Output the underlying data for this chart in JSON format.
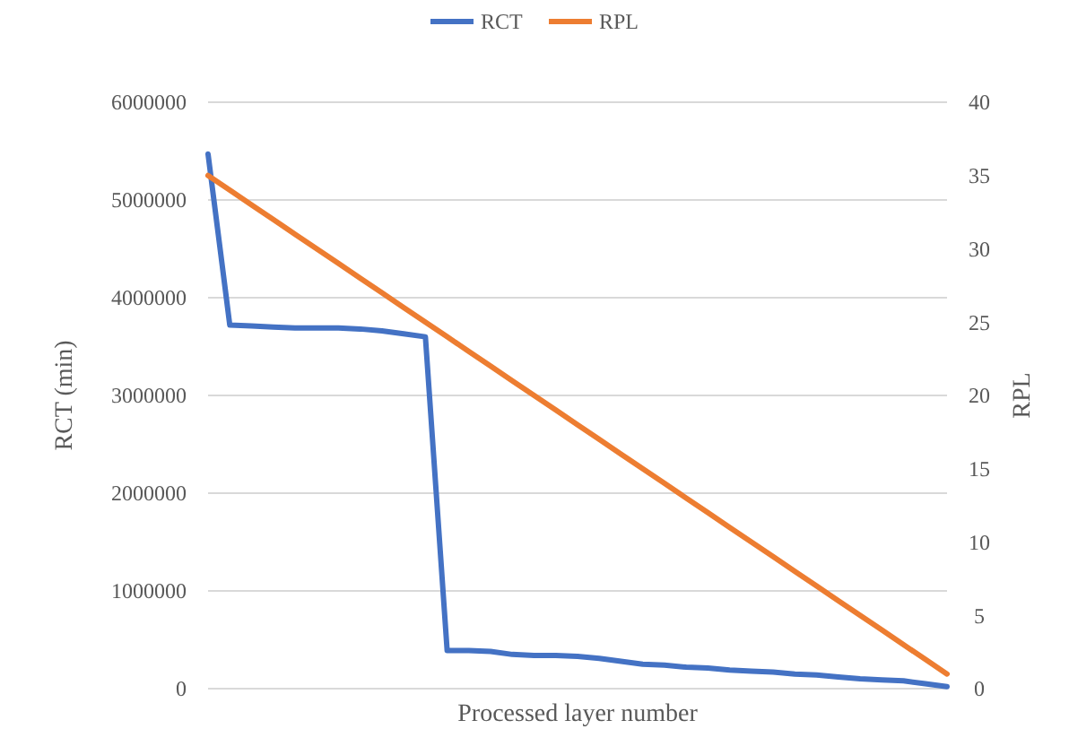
{
  "chart_data": {
    "type": "line",
    "xlabel": "Processed layer number",
    "ylabel": "RCT (min)",
    "y2label": "RPL",
    "categories": [
      null,
      null,
      null,
      null,
      null,
      null,
      null,
      null,
      null,
      null,
      null,
      null,
      null,
      null,
      null,
      null,
      null,
      null,
      null,
      null,
      null,
      null,
      null,
      null,
      null,
      null,
      null,
      null,
      null,
      null,
      null,
      null,
      null,
      null,
      null
    ],
    "series": [
      {
        "name": "RCT",
        "color": "#4472c4",
        "values": [
          5470000,
          3720000,
          3710000,
          3700000,
          3690000,
          3690000,
          3690000,
          3680000,
          3660000,
          3630000,
          3600000,
          390000,
          390000,
          380000,
          350000,
          340000,
          340000,
          330000,
          310000,
          280000,
          250000,
          240000,
          220000,
          210000,
          190000,
          180000,
          170000,
          150000,
          140000,
          120000,
          100000,
          90000,
          80000,
          50000,
          20000
        ]
      },
      {
        "name": "RPL",
        "color": "#ed7d31",
        "axis": "y2",
        "values": [
          35,
          34,
          33,
          32,
          31,
          30,
          29,
          28,
          27,
          26,
          25,
          24,
          23,
          22,
          21,
          20,
          19,
          18,
          17,
          16,
          15,
          14,
          13,
          12,
          11,
          10,
          9,
          8,
          7,
          6,
          5,
          4,
          3,
          2,
          1
        ]
      }
    ],
    "ylim": [
      0,
      6000000
    ],
    "yticks": [
      0,
      1000000,
      2000000,
      3000000,
      4000000,
      5000000,
      6000000
    ],
    "y2lim": [
      0,
      40
    ],
    "y2ticks": [
      0,
      5,
      10,
      15,
      20,
      25,
      30,
      35,
      40
    ],
    "grid": "y",
    "legend": "top",
    "marker": "none",
    "line_style": "solid"
  }
}
